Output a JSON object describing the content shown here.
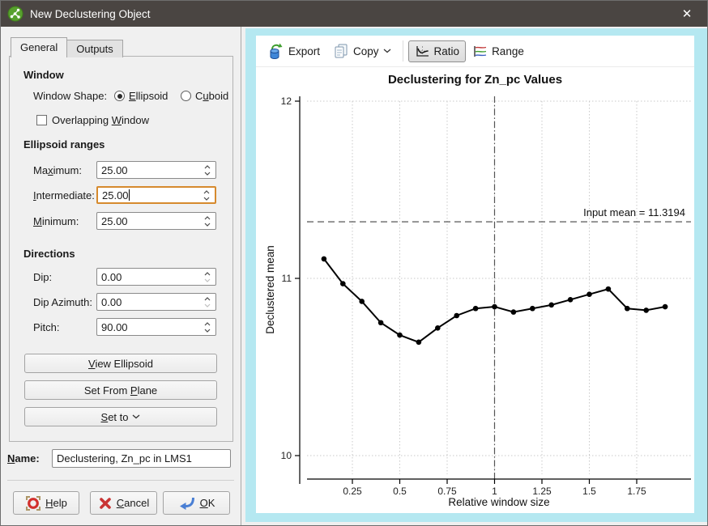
{
  "window": {
    "title": "New Declustering Object",
    "close_glyph": "✕"
  },
  "tabs": {
    "general": "General",
    "outputs": "Outputs"
  },
  "general_tab": {
    "window_section": {
      "heading": "Window",
      "shape_label": "Window Shape:",
      "ellipsoid_option": "Ellipsoid",
      "cuboid_option": "Cuboid",
      "overlapping_label": "Overlapping Window"
    },
    "ranges_section": {
      "heading": "Ellipsoid ranges",
      "maximum_label": "Maximum:",
      "maximum_value": "25.00",
      "intermediate_label": "Intermediate:",
      "intermediate_value": "25.00",
      "minimum_label": "Minimum:",
      "minimum_value": "25.00"
    },
    "directions_section": {
      "heading": "Directions",
      "dip_label": "Dip:",
      "dip_value": "0.00",
      "dip_azimuth_label": "Dip Azimuth:",
      "dip_azimuth_value": "0.00",
      "pitch_label": "Pitch:",
      "pitch_value": "90.00"
    },
    "buttons": {
      "view_ellipsoid": "View Ellipsoid",
      "set_from_plane": "Set From Plane",
      "set_to": "Set to"
    }
  },
  "name_row": {
    "label": "Name:",
    "value": "Declustering, Zn_pc in LMS1"
  },
  "footer": {
    "help": "Help",
    "cancel": "Cancel",
    "ok": "OK"
  },
  "toolbar": {
    "export": "Export",
    "copy": "Copy",
    "ratio": "Ratio",
    "range": "Range"
  },
  "chart_data": {
    "type": "line",
    "title": "Declustering for Zn_pc Values",
    "xlabel": "Relative window size",
    "ylabel": "Declustered mean",
    "x": [
      0.1,
      0.2,
      0.3,
      0.4,
      0.5,
      0.6,
      0.7,
      0.8,
      0.9,
      1.0,
      1.1,
      1.2,
      1.3,
      1.4,
      1.5,
      1.6,
      1.7,
      1.8,
      1.9
    ],
    "values": [
      11.11,
      10.97,
      10.87,
      10.75,
      10.68,
      10.64,
      10.72,
      10.79,
      10.83,
      10.84,
      10.81,
      10.83,
      10.85,
      10.88,
      10.91,
      10.94,
      10.83,
      10.82,
      10.84
    ],
    "input_mean": 11.3194,
    "input_mean_label": "Input mean = 11.3194",
    "reference_x": 1,
    "xticks": [
      0.25,
      0.5,
      0.75,
      1,
      1.25,
      1.5,
      1.75
    ],
    "yticks": [
      10,
      11,
      12
    ],
    "xlim": [
      0,
      1.95
    ],
    "ylim": [
      9.95,
      12.05
    ],
    "grid": true,
    "line_color": "#000000",
    "grid_color": "#c9c9c9"
  }
}
